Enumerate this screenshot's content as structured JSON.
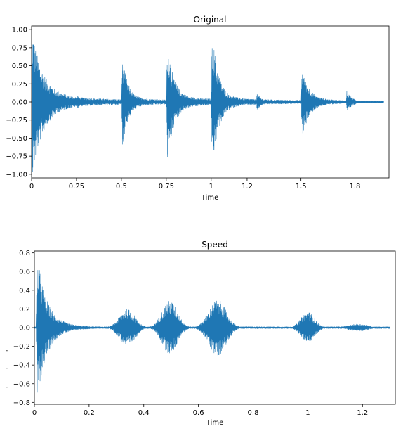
{
  "chart_data": [
    {
      "type": "waveform",
      "title": "Original",
      "xlabel": "Time",
      "ylabel": "",
      "xlim": [
        0,
        1.99
      ],
      "ylim": [
        -1.05,
        1.05
      ],
      "x_ticks": [
        0,
        0.25,
        0.5,
        0.75,
        1,
        1.2,
        1.5,
        1.8
      ],
      "x_tick_labels": [
        "0",
        "0.25",
        "0.5",
        "0.75",
        "1",
        "1.2",
        "1.5",
        "1.8"
      ],
      "y_ticks": [
        1.0,
        0.75,
        0.5,
        0.25,
        0.0,
        -0.25,
        -0.5,
        -0.75,
        -1.0
      ],
      "y_tick_labels": [
        "1.00",
        "0.75",
        "0.50",
        "0.25",
        "0.00",
        "−0.25",
        "−0.50",
        "−0.75",
        "−1.00"
      ],
      "color": "#1f77b4",
      "grid": false,
      "envelope": {
        "noise_floor": 0.01,
        "bursts": [
          {
            "t": 0.005,
            "pos": 0.89,
            "neg": -0.95,
            "decay": 0.06,
            "tail": 0.28,
            "tail_decay": 0.6
          },
          {
            "t": 0.255,
            "pos": 0.1,
            "neg": -0.1,
            "decay": 0.03,
            "tail": 0.0,
            "tail_decay": 0.1
          },
          {
            "t": 0.505,
            "pos": 0.6,
            "neg": -0.62,
            "decay": 0.03,
            "tail": 0.18,
            "tail_decay": 0.5
          },
          {
            "t": 0.755,
            "pos": 0.84,
            "neg": -0.85,
            "decay": 0.035,
            "tail": 0.22,
            "tail_decay": 0.6
          },
          {
            "t": 1.005,
            "pos": 0.95,
            "neg": -0.94,
            "decay": 0.035,
            "tail": 0.2,
            "tail_decay": 0.55
          },
          {
            "t": 1.255,
            "pos": 0.12,
            "neg": -0.12,
            "decay": 0.03,
            "tail": 0.0,
            "tail_decay": 0.1
          },
          {
            "t": 1.505,
            "pos": 0.45,
            "neg": -0.48,
            "decay": 0.04,
            "tail": 0.12,
            "tail_decay": 0.5
          },
          {
            "t": 1.755,
            "pos": 0.16,
            "neg": -0.16,
            "decay": 0.03,
            "tail": 0.0,
            "tail_decay": 0.1
          }
        ]
      }
    },
    {
      "type": "waveform",
      "title": "Speed",
      "xlabel": "Time",
      "ylabel": "",
      "xlim": [
        0,
        1.32
      ],
      "ylim": [
        -0.82,
        0.82
      ],
      "x_ticks": [
        0,
        0.2,
        0.4,
        0.6,
        0.8,
        1,
        1.2
      ],
      "x_tick_labels": [
        "0",
        "0.2",
        "0.4",
        "0.6",
        "0.8",
        "1",
        "1.2"
      ],
      "y_ticks": [
        0.8,
        0.6,
        0.4,
        0.2,
        0.0,
        -0.2,
        -0.4,
        -0.6,
        -0.8
      ],
      "y_tick_labels": [
        "0.8",
        "0.6",
        "0.4",
        "0.2",
        "0.0",
        "−0.2",
        "−0.4",
        "−0.6",
        "−0.8"
      ],
      "color": "#1f77b4",
      "grid": false,
      "envelope": {
        "noise_floor": 0.012,
        "bursts": [
          {
            "t": 0.01,
            "pos": 0.76,
            "neg": -0.76,
            "decay": 0.035,
            "tail": 0.1,
            "tail_decay": 0.2
          },
          {
            "t": 0.34,
            "pos": 0.2,
            "neg": -0.2,
            "width": 0.04
          },
          {
            "t": 0.495,
            "pos": 0.29,
            "neg": -0.28,
            "width": 0.04
          },
          {
            "t": 0.67,
            "pos": 0.3,
            "neg": -0.3,
            "width": 0.045
          },
          {
            "t": 1.0,
            "pos": 0.17,
            "neg": -0.16,
            "width": 0.035
          },
          {
            "t": 1.185,
            "pos": 0.04,
            "neg": -0.04,
            "width": 0.05
          }
        ]
      }
    }
  ],
  "stray_marks": [
    "-",
    "-",
    "-"
  ]
}
